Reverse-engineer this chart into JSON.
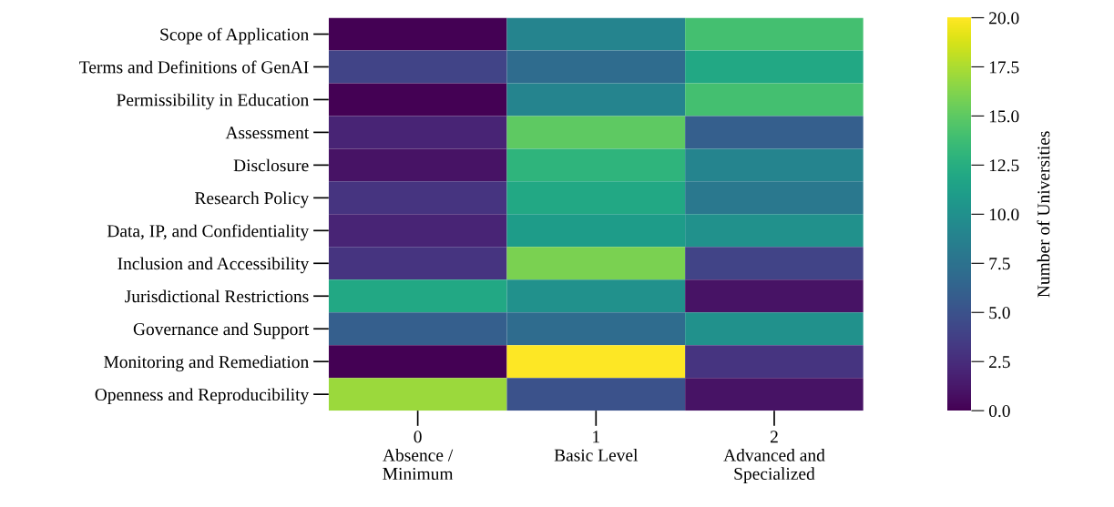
{
  "chart_data": {
    "type": "heatmap",
    "categories": [
      "0\nAbsence /\nMinimum",
      "1\nBasic Level",
      "2\nAdvanced and\nSpecialized"
    ],
    "y_categories": [
      "Scope of Application",
      "Terms and Definitions of GenAI",
      "Permissibility in Education",
      "Assessment",
      "Disclosure",
      "Research Policy",
      "Data, IP, and Confidentiality",
      "Inclusion and Accessibility",
      "Jurisdictional Restrictions",
      "Governance and Support",
      "Monitoring and Remediation",
      "Openness and Reproducibility"
    ],
    "cells": [
      [
        0,
        9,
        14
      ],
      [
        4,
        7,
        12
      ],
      [
        0,
        9,
        14
      ],
      [
        2,
        15,
        6
      ],
      [
        1,
        13,
        9
      ],
      [
        3,
        12,
        8
      ],
      [
        2,
        11,
        10
      ],
      [
        3,
        16,
        4
      ],
      [
        12,
        10,
        1
      ],
      [
        6,
        7,
        10
      ],
      [
        0,
        20,
        3
      ],
      [
        17,
        5,
        1
      ]
    ],
    "clabel": "Number of Universities",
    "clim": [
      0,
      20
    ],
    "cticks": [
      {
        "value": 0,
        "label": "0.0"
      },
      {
        "value": 2.5,
        "label": "2.5"
      },
      {
        "value": 5,
        "label": "5.0"
      },
      {
        "value": 7.5,
        "label": "7.5"
      },
      {
        "value": 10,
        "label": "10.0"
      },
      {
        "value": 12.5,
        "label": "12.5"
      },
      {
        "value": 15,
        "label": "15.0"
      },
      {
        "value": 17.5,
        "label": "17.5"
      },
      {
        "value": 20,
        "label": "20.0"
      }
    ]
  }
}
